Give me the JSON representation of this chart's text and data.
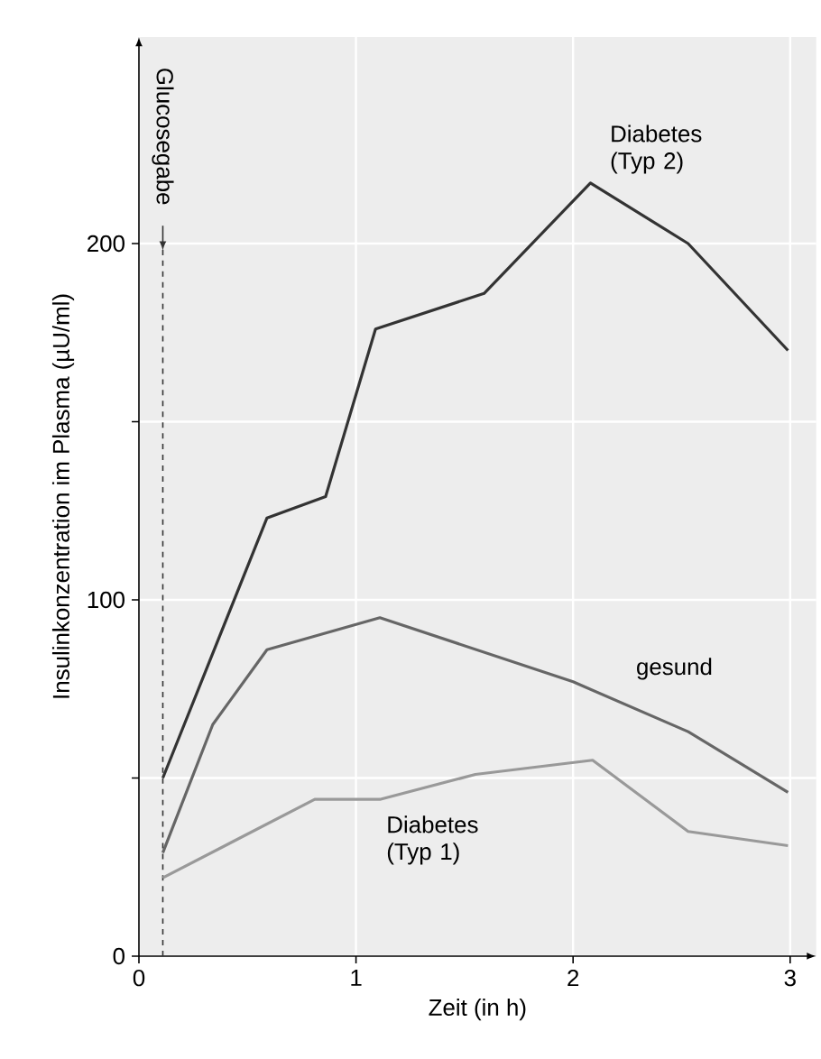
{
  "chart_data": {
    "type": "line",
    "xlabel": "Zeit (in h)",
    "ylabel": "Insulinkonzentration im Plasma (µU/ml)",
    "xlim": [
      0,
      3.12
    ],
    "ylim": [
      0,
      258
    ],
    "xticks": [
      0,
      1,
      2,
      3
    ],
    "yticks": [
      0,
      {
        "value": 50,
        "label": null
      },
      100,
      {
        "value": 150,
        "label": null
      },
      200
    ],
    "grid": true,
    "marker": "none",
    "line_style": "solid",
    "ref_lines": [
      {
        "axis": "x",
        "value": 0.11,
        "label": "Glucosegabe",
        "line_style": "dashed",
        "color": "#333333"
      }
    ],
    "series": [
      {
        "name": "Diabetes (Typ 2)",
        "color": "#333333",
        "x": [
          0.11,
          0.59,
          0.86,
          1.09,
          1.59,
          2.08,
          2.53,
          2.99
        ],
        "values": [
          50,
          123,
          129,
          176,
          186,
          217,
          200,
          170
        ]
      },
      {
        "name": "gesund",
        "color": "#666666",
        "x": [
          0.11,
          0.34,
          0.59,
          1.11,
          2.0,
          2.53,
          2.99
        ],
        "values": [
          29,
          65,
          86,
          95,
          77,
          63,
          46
        ]
      },
      {
        "name": "Diabetes (Typ 1)",
        "color": "#999999",
        "x": [
          0.11,
          0.81,
          1.11,
          1.55,
          2.09,
          2.53,
          2.99
        ],
        "values": [
          22,
          44,
          44,
          51,
          55,
          35,
          31
        ]
      }
    ]
  }
}
